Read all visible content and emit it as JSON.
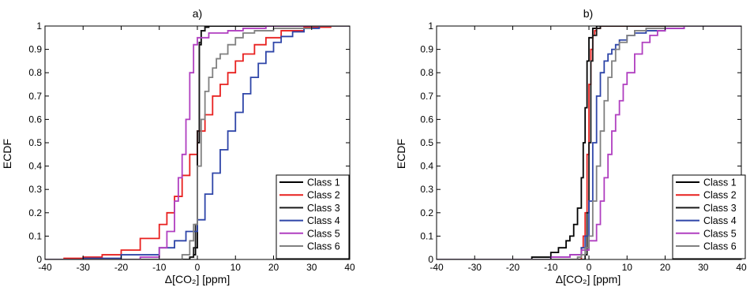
{
  "chart_data": [
    {
      "type": "line",
      "title": "a)",
      "xlabel": "Δ[CO₂] [ppm]",
      "ylabel": "ECDF",
      "xlim": [
        -40,
        40
      ],
      "ylim": [
        0,
        1
      ],
      "xticks": [
        -40,
        -30,
        -20,
        -10,
        0,
        10,
        20,
        30,
        40
      ],
      "yticks": [
        0,
        0.1,
        0.2,
        0.3,
        0.4,
        0.5,
        0.6,
        0.7,
        0.8,
        0.9,
        1
      ],
      "ytick_labels": [
        "0",
        "0.1",
        "0.2",
        "0.3",
        "0.4",
        "0.5",
        "0.6",
        "0.7",
        "0.8",
        "0.9",
        "1"
      ],
      "grid": false,
      "legend_position": "bottom-right",
      "series": [
        {
          "name": "Class 1",
          "color": "#000000",
          "points": [
            [
              -40,
              0
            ],
            [
              -3,
              0
            ],
            [
              -2,
              0.01
            ],
            [
              -1,
              0.02
            ],
            [
              -0.5,
              0.05
            ],
            [
              0,
              0.5
            ],
            [
              0.5,
              0.92
            ],
            [
              1,
              0.98
            ],
            [
              2,
              0.995
            ],
            [
              3,
              1
            ],
            [
              40,
              1
            ]
          ]
        },
        {
          "name": "Class 2",
          "color": "#e8201f",
          "points": [
            [
              -40,
              0
            ],
            [
              -35,
              0.005
            ],
            [
              -30,
              0.01
            ],
            [
              -25,
              0.02
            ],
            [
              -20,
              0.04
            ],
            [
              -15,
              0.09
            ],
            [
              -10,
              0.15
            ],
            [
              -8,
              0.2
            ],
            [
              -6,
              0.27
            ],
            [
              -4,
              0.36
            ],
            [
              -2,
              0.45
            ],
            [
              0,
              0.55
            ],
            [
              2,
              0.62
            ],
            [
              4,
              0.7
            ],
            [
              6,
              0.75
            ],
            [
              8,
              0.8
            ],
            [
              10,
              0.85
            ],
            [
              12,
              0.88
            ],
            [
              15,
              0.92
            ],
            [
              18,
              0.95
            ],
            [
              22,
              0.98
            ],
            [
              28,
              0.995
            ],
            [
              35,
              1
            ],
            [
              40,
              1
            ]
          ]
        },
        {
          "name": "Class 3",
          "color": "#1a1a1a",
          "points": [
            [
              -40,
              0
            ],
            [
              -2.5,
              0
            ],
            [
              -2,
              0.01
            ],
            [
              -1,
              0.05
            ],
            [
              -0.5,
              0.15
            ],
            [
              0,
              0.55
            ],
            [
              0.5,
              0.93
            ],
            [
              1,
              0.98
            ],
            [
              2,
              1
            ],
            [
              40,
              1
            ]
          ]
        },
        {
          "name": "Class 4",
          "color": "#2e45a8",
          "points": [
            [
              -40,
              0
            ],
            [
              -30,
              0.005
            ],
            [
              -20,
              0.02
            ],
            [
              -10,
              0.05
            ],
            [
              -6,
              0.08
            ],
            [
              -3,
              0.12
            ],
            [
              0,
              0.17
            ],
            [
              2,
              0.28
            ],
            [
              4,
              0.37
            ],
            [
              6,
              0.47
            ],
            [
              8,
              0.55
            ],
            [
              10,
              0.63
            ],
            [
              12,
              0.71
            ],
            [
              14,
              0.78
            ],
            [
              16,
              0.84
            ],
            [
              18,
              0.89
            ],
            [
              20,
              0.93
            ],
            [
              22,
              0.955
            ],
            [
              25,
              0.975
            ],
            [
              28,
              0.99
            ],
            [
              32,
              1
            ],
            [
              40,
              1
            ]
          ]
        },
        {
          "name": "Class 5",
          "color": "#b03fc0",
          "points": [
            [
              -40,
              0
            ],
            [
              -20,
              0
            ],
            [
              -15,
              0.01
            ],
            [
              -10,
              0.05
            ],
            [
              -8,
              0.12
            ],
            [
              -6,
              0.25
            ],
            [
              -5,
              0.35
            ],
            [
              -4,
              0.45
            ],
            [
              -3,
              0.6
            ],
            [
              -2,
              0.8
            ],
            [
              -1,
              0.92
            ],
            [
              0,
              0.95
            ],
            [
              3,
              0.97
            ],
            [
              8,
              0.98
            ],
            [
              12,
              0.99
            ],
            [
              18,
              1
            ],
            [
              40,
              1
            ]
          ]
        },
        {
          "name": "Class 6",
          "color": "#808080",
          "points": [
            [
              -40,
              0
            ],
            [
              -6,
              0
            ],
            [
              -4,
              0.02
            ],
            [
              -2,
              0.08
            ],
            [
              -1,
              0.15
            ],
            [
              0,
              0.4
            ],
            [
              1,
              0.6
            ],
            [
              2,
              0.72
            ],
            [
              3,
              0.78
            ],
            [
              4,
              0.82
            ],
            [
              5,
              0.86
            ],
            [
              6,
              0.88
            ],
            [
              8,
              0.92
            ],
            [
              10,
              0.95
            ],
            [
              12,
              0.97
            ],
            [
              15,
              0.98
            ],
            [
              20,
              0.99
            ],
            [
              30,
              1
            ],
            [
              40,
              1
            ]
          ]
        }
      ]
    },
    {
      "type": "line",
      "title": "b)",
      "xlabel": "Δ[CO₂] [ppm]",
      "ylabel": "ECDF",
      "xlim": [
        -40,
        40
      ],
      "ylim": [
        0,
        1
      ],
      "xticks": [
        -40,
        -30,
        -20,
        -10,
        0,
        10,
        20,
        30,
        40
      ],
      "yticks": [
        0,
        0.1,
        0.2,
        0.3,
        0.4,
        0.5,
        0.6,
        0.7,
        0.8,
        0.9,
        1
      ],
      "ytick_labels": [
        "0",
        "0.1",
        "0.2",
        "0.3",
        "0.4",
        "0.5",
        "0.6",
        "0.7",
        "0.8",
        "0.9",
        "1"
      ],
      "grid": false,
      "legend_position": "bottom-right",
      "series": [
        {
          "name": "Class 1",
          "color": "#000000",
          "points": [
            [
              -40,
              0
            ],
            [
              -20,
              0
            ],
            [
              -15,
              0.01
            ],
            [
              -10,
              0.03
            ],
            [
              -8,
              0.05
            ],
            [
              -6,
              0.08
            ],
            [
              -5,
              0.1
            ],
            [
              -4,
              0.15
            ],
            [
              -3,
              0.22
            ],
            [
              -2,
              0.35
            ],
            [
              -1.5,
              0.5
            ],
            [
              -1,
              0.65
            ],
            [
              -0.5,
              0.85
            ],
            [
              0,
              0.95
            ],
            [
              1,
              0.99
            ],
            [
              2,
              1
            ],
            [
              40,
              1
            ]
          ]
        },
        {
          "name": "Class 2",
          "color": "#e8201f",
          "points": [
            [
              -40,
              0
            ],
            [
              -3,
              0
            ],
            [
              -2,
              0.05
            ],
            [
              -1.5,
              0.1
            ],
            [
              -1,
              0.2
            ],
            [
              -0.5,
              0.45
            ],
            [
              0,
              0.75
            ],
            [
              0.5,
              0.9
            ],
            [
              1,
              0.96
            ],
            [
              1.5,
              0.98
            ],
            [
              2,
              0.99
            ],
            [
              3,
              1
            ],
            [
              40,
              1
            ]
          ]
        },
        {
          "name": "Class 3",
          "color": "#1a1a1a",
          "points": [
            [
              -40,
              0
            ],
            [
              -1.5,
              0
            ],
            [
              -1,
              0.02
            ],
            [
              -0.5,
              0.2
            ],
            [
              0,
              0.5
            ],
            [
              0.5,
              0.85
            ],
            [
              1,
              0.96
            ],
            [
              2,
              0.99
            ],
            [
              3,
              1
            ],
            [
              40,
              1
            ]
          ]
        },
        {
          "name": "Class 4",
          "color": "#2e45a8",
          "points": [
            [
              -40,
              0
            ],
            [
              -15,
              0
            ],
            [
              -10,
              0.01
            ],
            [
              -5,
              0.02
            ],
            [
              -2,
              0.05
            ],
            [
              -1,
              0.1
            ],
            [
              0,
              0.25
            ],
            [
              1,
              0.5
            ],
            [
              2,
              0.7
            ],
            [
              3,
              0.8
            ],
            [
              4,
              0.85
            ],
            [
              5,
              0.88
            ],
            [
              6,
              0.9
            ],
            [
              7,
              0.92
            ],
            [
              8,
              0.94
            ],
            [
              10,
              0.96
            ],
            [
              12,
              0.97
            ],
            [
              15,
              0.98
            ],
            [
              20,
              0.99
            ],
            [
              25,
              1
            ],
            [
              40,
              1
            ]
          ]
        },
        {
          "name": "Class 5",
          "color": "#b03fc0",
          "points": [
            [
              -40,
              0
            ],
            [
              -15,
              0
            ],
            [
              -10,
              0.01
            ],
            [
              -5,
              0.02
            ],
            [
              -2,
              0.04
            ],
            [
              0,
              0.08
            ],
            [
              2,
              0.15
            ],
            [
              3,
              0.25
            ],
            [
              4,
              0.35
            ],
            [
              5,
              0.45
            ],
            [
              6,
              0.55
            ],
            [
              7,
              0.62
            ],
            [
              8,
              0.68
            ],
            [
              9,
              0.75
            ],
            [
              10,
              0.8
            ],
            [
              12,
              0.88
            ],
            [
              14,
              0.93
            ],
            [
              16,
              0.96
            ],
            [
              18,
              0.98
            ],
            [
              20,
              0.99
            ],
            [
              25,
              1
            ],
            [
              40,
              1
            ]
          ]
        },
        {
          "name": "Class 6",
          "color": "#808080",
          "points": [
            [
              -40,
              0
            ],
            [
              -5,
              0
            ],
            [
              -3,
              0.01
            ],
            [
              -2,
              0.02
            ],
            [
              -1,
              0.05
            ],
            [
              0,
              0.1
            ],
            [
              1,
              0.25
            ],
            [
              2,
              0.4
            ],
            [
              3,
              0.55
            ],
            [
              4,
              0.68
            ],
            [
              5,
              0.78
            ],
            [
              6,
              0.85
            ],
            [
              7,
              0.9
            ],
            [
              8,
              0.93
            ],
            [
              10,
              0.96
            ],
            [
              12,
              0.98
            ],
            [
              15,
              0.99
            ],
            [
              20,
              1
            ],
            [
              40,
              1
            ]
          ]
        }
      ]
    }
  ]
}
